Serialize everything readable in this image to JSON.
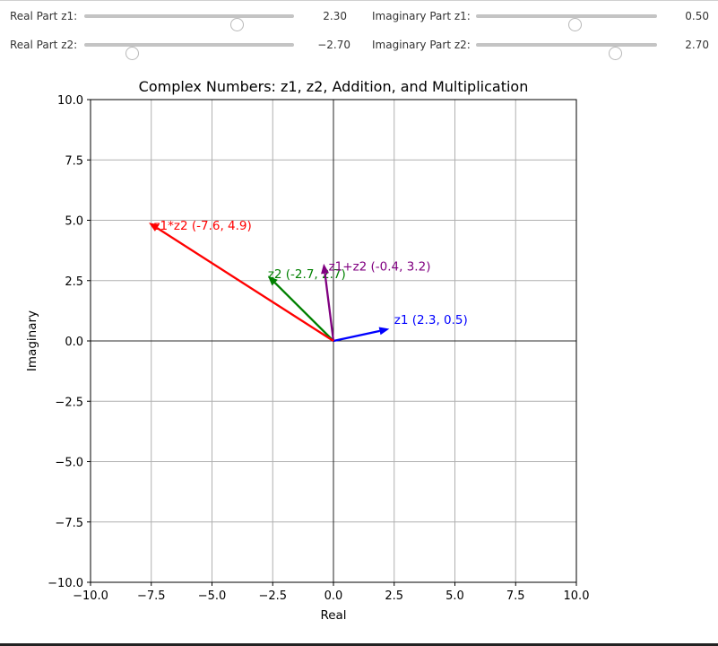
{
  "controls": {
    "sliders": [
      {
        "label": "Real Part z1:",
        "value": 2.3,
        "display": "2.30",
        "min": -5,
        "max": 5
      },
      {
        "label": "Imaginary Part z1:",
        "value": 0.5,
        "display": "0.50",
        "min": -5,
        "max": 5
      },
      {
        "label": "Real Part z2:",
        "value": -2.7,
        "display": "−2.70",
        "min": -5,
        "max": 5
      },
      {
        "label": "Imaginary Part z2:",
        "value": 2.7,
        "display": "2.70",
        "min": -5,
        "max": 5
      }
    ]
  },
  "chart_data": {
    "type": "vector",
    "title": "Complex Numbers: z1, z2, Addition, and Multiplication",
    "xlabel": "Real",
    "ylabel": "Imaginary",
    "xlim": [
      -10,
      10
    ],
    "ylim": [
      -10,
      10
    ],
    "xticks": [
      -10,
      -7.5,
      -5,
      -2.5,
      0,
      2.5,
      5,
      7.5,
      10
    ],
    "yticks": [
      -10,
      -7.5,
      -5,
      -2.5,
      0,
      2.5,
      5,
      7.5,
      10
    ],
    "xtick_labels": [
      "−10.0",
      "−7.5",
      "−5.0",
      "−2.5",
      "0.0",
      "2.5",
      "5.0",
      "7.5",
      "10.0"
    ],
    "ytick_labels": [
      "−10.0",
      "−7.5",
      "−5.0",
      "−2.5",
      "0.0",
      "2.5",
      "5.0",
      "7.5",
      "10.0"
    ],
    "grid": true,
    "series": [
      {
        "label": "z1 (2.3, 0.5)",
        "x": 2.3,
        "y": 0.5,
        "color": "#0000ff",
        "label_offset": [
          0.2,
          0.1
        ]
      },
      {
        "label": "z2 (-2.7, 2.7)",
        "x": -2.7,
        "y": 2.7,
        "color": "#008000",
        "label_offset": [
          0,
          -0.2
        ]
      },
      {
        "label": "z1+z2 (-0.4, 3.2)",
        "x": -0.4,
        "y": 3.2,
        "color": "#800080",
        "label_offset": [
          0.2,
          -0.4
        ]
      },
      {
        "label": "z1*z2 (-7.6, 4.9)",
        "x": -7.6,
        "y": 4.9,
        "color": "#ff0000",
        "label_offset": [
          0.2,
          -0.4
        ]
      }
    ]
  }
}
